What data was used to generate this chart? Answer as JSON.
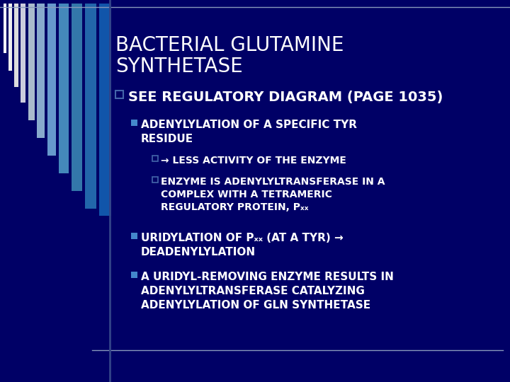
{
  "bg_color": "#000066",
  "title_color": "#ffffff",
  "stripe_colors": [
    "#ffffff",
    "#ddddee",
    "#bbccee",
    "#8899cc",
    "#6688bb",
    "#4477aa",
    "#336699",
    "#224488",
    "#113377"
  ],
  "top_line_color": "#8899bb",
  "bottom_line_color": "#8899bb",
  "title_line1": "BACTERIAL GLUTAMINE",
  "title_line2": "SYNTHETASE",
  "l0_bullet_color": "#4466aa",
  "l0_text": "SEE REGULATORY DIAGRAM (PAGE 1035)",
  "l0_text_color": "#ffffff",
  "l1_bullet_color": "#4488cc",
  "l1_texts": [
    "ADENYLYLATION OF A SPECIFIC TYR\nRESIDUE",
    "URIDYLATION OF P",
    " (AT A TYR) →\nDEADENYLYLATION",
    "A URIDYL-REMOVING ENZYME RESULTS IN\nADENYLYLTRANSFERASE CATALYZING\nADENYLYLATION OF GLN SYNTHETASE"
  ],
  "l2_bullet_color": "#4466aa",
  "l2_text1": "→ LESS ACTIVITY OF THE ENZYME",
  "l2_text2": "ENZYME IS ADENYLYLTRANSFERASE IN A\nCOMPLEX WITH A TETRAMERIC\nREGULATORY PROTEIN, P",
  "text_color": "#ffffff",
  "font_size_title": 20,
  "font_size_l0": 14,
  "font_size_l1": 11,
  "font_size_l2": 10
}
